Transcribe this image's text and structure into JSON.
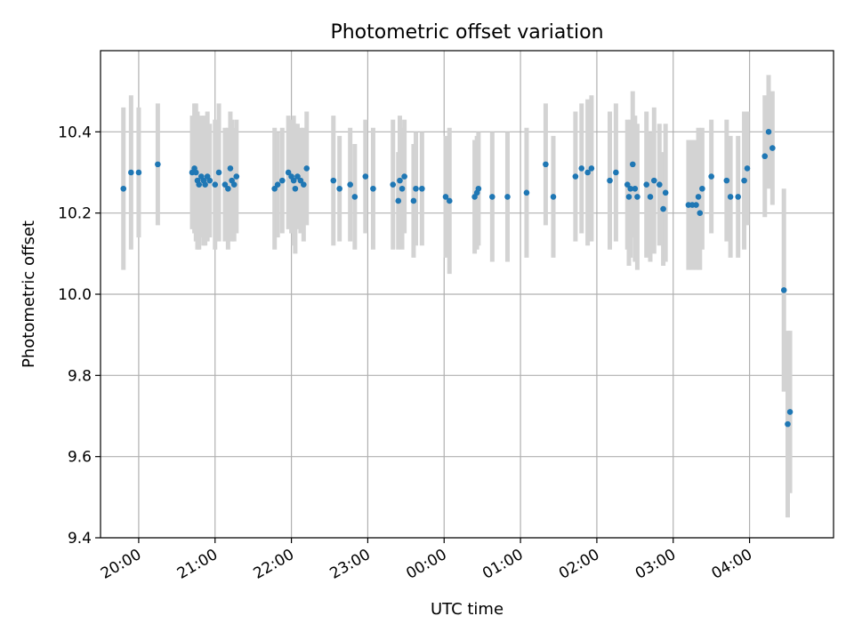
{
  "chart_data": {
    "type": "scatter",
    "title": "Photometric offset variation",
    "xlabel": "UTC time",
    "ylabel": "Photometric offset",
    "x_is_time_hours": true,
    "xlim": [
      19.5,
      29.1
    ],
    "ylim": [
      9.4,
      10.6
    ],
    "xticks": [
      20,
      21,
      22,
      23,
      24,
      25,
      26,
      27,
      28
    ],
    "xtick_labels": [
      "20:00",
      "21:00",
      "22:00",
      "23:00",
      "00:00",
      "01:00",
      "02:00",
      "03:00",
      "04:00"
    ],
    "yticks": [
      9.4,
      9.6,
      9.8,
      10.0,
      10.2,
      10.4
    ],
    "ytick_labels": [
      "9.4",
      "9.6",
      "9.8",
      "10.0",
      "10.2",
      "10.4"
    ],
    "grid": true,
    "colors": {
      "marker": "#1f77b4",
      "errorbar": "#d3d3d3",
      "grid": "#b0b0b0"
    },
    "series": [
      {
        "points": [
          [
            19.8,
            10.26,
            0.2
          ],
          [
            19.9,
            10.3,
            0.19
          ],
          [
            20.0,
            10.3,
            0.16
          ],
          [
            20.25,
            10.32,
            0.15
          ],
          [
            20.7,
            10.3,
            0.14
          ],
          [
            20.73,
            10.31,
            0.16
          ],
          [
            20.75,
            10.3,
            0.17
          ],
          [
            20.77,
            10.28,
            0.17
          ],
          [
            20.79,
            10.27,
            0.16
          ],
          [
            20.82,
            10.29,
            0.15
          ],
          [
            20.85,
            10.28,
            0.16
          ],
          [
            20.87,
            10.27,
            0.15
          ],
          [
            20.9,
            10.29,
            0.16
          ],
          [
            20.93,
            10.28,
            0.14
          ],
          [
            21.0,
            10.27,
            0.16
          ],
          [
            21.05,
            10.3,
            0.17
          ],
          [
            21.13,
            10.27,
            0.14
          ],
          [
            21.17,
            10.26,
            0.15
          ],
          [
            21.2,
            10.31,
            0.14
          ],
          [
            21.22,
            10.28,
            0.15
          ],
          [
            21.25,
            10.27,
            0.14
          ],
          [
            21.28,
            10.29,
            0.14
          ],
          [
            21.78,
            10.26,
            0.15
          ],
          [
            21.82,
            10.27,
            0.13
          ],
          [
            21.88,
            10.28,
            0.13
          ],
          [
            21.96,
            10.3,
            0.14
          ],
          [
            22.0,
            10.29,
            0.14
          ],
          [
            22.03,
            10.28,
            0.16
          ],
          [
            22.05,
            10.26,
            0.16
          ],
          [
            22.08,
            10.29,
            0.13
          ],
          [
            22.12,
            10.28,
            0.13
          ],
          [
            22.16,
            10.27,
            0.14
          ],
          [
            22.2,
            10.31,
            0.14
          ],
          [
            22.55,
            10.28,
            0.16
          ],
          [
            22.63,
            10.26,
            0.13
          ],
          [
            22.77,
            10.27,
            0.14
          ],
          [
            22.83,
            10.24,
            0.13
          ],
          [
            22.97,
            10.29,
            0.14
          ],
          [
            23.07,
            10.26,
            0.15
          ],
          [
            23.33,
            10.27,
            0.16
          ],
          [
            23.4,
            10.23,
            0.12
          ],
          [
            23.42,
            10.28,
            0.16
          ],
          [
            23.45,
            10.26,
            0.15
          ],
          [
            23.48,
            10.29,
            0.14
          ],
          [
            23.6,
            10.23,
            0.14
          ],
          [
            23.63,
            10.26,
            0.14
          ],
          [
            23.71,
            10.26,
            0.14
          ],
          [
            24.02,
            10.24,
            0.15
          ],
          [
            24.07,
            10.23,
            0.18
          ],
          [
            24.4,
            10.24,
            0.14
          ],
          [
            24.43,
            10.25,
            0.14
          ],
          [
            24.45,
            10.26,
            0.14
          ],
          [
            24.63,
            10.24,
            0.16
          ],
          [
            24.83,
            10.24,
            0.16
          ],
          [
            25.08,
            10.25,
            0.16
          ],
          [
            25.33,
            10.32,
            0.15
          ],
          [
            25.43,
            10.24,
            0.15
          ],
          [
            25.72,
            10.29,
            0.16
          ],
          [
            25.8,
            10.31,
            0.16
          ],
          [
            25.88,
            10.3,
            0.18
          ],
          [
            25.93,
            10.31,
            0.18
          ],
          [
            26.17,
            10.28,
            0.17
          ],
          [
            26.25,
            10.3,
            0.17
          ],
          [
            26.4,
            10.27,
            0.16
          ],
          [
            26.42,
            10.24,
            0.17
          ],
          [
            26.44,
            10.26,
            0.17
          ],
          [
            26.47,
            10.32,
            0.18
          ],
          [
            26.5,
            10.26,
            0.18
          ],
          [
            26.53,
            10.24,
            0.18
          ],
          [
            26.65,
            10.27,
            0.18
          ],
          [
            26.7,
            10.24,
            0.16
          ],
          [
            26.75,
            10.28,
            0.18
          ],
          [
            26.82,
            10.27,
            0.15
          ],
          [
            26.87,
            10.21,
            0.14
          ],
          [
            26.9,
            10.25,
            0.17
          ],
          [
            27.2,
            10.22,
            0.16
          ],
          [
            27.25,
            10.22,
            0.16
          ],
          [
            27.3,
            10.22,
            0.16
          ],
          [
            27.33,
            10.24,
            0.17
          ],
          [
            27.35,
            10.2,
            0.14
          ],
          [
            27.38,
            10.26,
            0.15
          ],
          [
            27.5,
            10.29,
            0.14
          ],
          [
            27.7,
            10.28,
            0.15
          ],
          [
            27.75,
            10.24,
            0.15
          ],
          [
            27.85,
            10.24,
            0.15
          ],
          [
            27.93,
            10.28,
            0.17
          ],
          [
            27.97,
            10.31,
            0.14
          ],
          [
            28.2,
            10.34,
            0.15
          ],
          [
            28.25,
            10.4,
            0.14
          ],
          [
            28.3,
            10.36,
            0.14
          ],
          [
            28.45,
            10.01,
            0.25
          ],
          [
            28.5,
            9.68,
            0.23
          ],
          [
            28.53,
            9.71,
            0.2
          ]
        ]
      }
    ]
  }
}
